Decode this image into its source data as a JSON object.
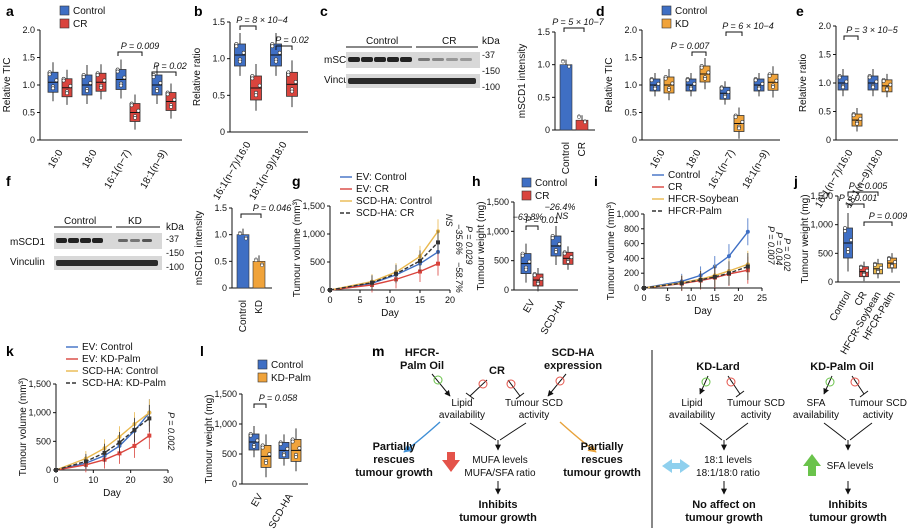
{
  "colors": {
    "control": "#3f6fc4",
    "cr": "#d9443d",
    "kd": "#f0a33a",
    "hfcr": "#e9b84e",
    "ink": "#111111",
    "orange": "#e8a23a",
    "blue": "#3f6fc4",
    "cyan": "#8fd0ee",
    "green": "#6ac34b",
    "red": "#e4534a"
  },
  "chart_data": [
    {
      "panel": "a",
      "type": "box",
      "ylabel": "Relative TIC",
      "ylim": [
        0,
        2
      ],
      "yticks": [
        "0",
        "0.5",
        "1.0",
        "1.5",
        "2.0"
      ],
      "categories": [
        "16:0",
        "18:0",
        "16:1(n−7)",
        "18:1(n−9)"
      ],
      "legend": [
        "Control",
        "CR"
      ],
      "series": [
        {
          "name": "Control",
          "values": [
            1.05,
            1.0,
            1.1,
            1.0
          ]
        },
        {
          "name": "CR",
          "values": [
            0.95,
            1.05,
            0.5,
            0.7
          ]
        }
      ],
      "annotations": [
        {
          "text": "P = 0.009"
        },
        {
          "text": "P = 0.02"
        }
      ]
    },
    {
      "panel": "b",
      "type": "box",
      "ylabel": "Relative ratio",
      "ylim": [
        0,
        1.5
      ],
      "yticks": [
        "0",
        "0.5",
        "1.0",
        "1.5"
      ],
      "categories": [
        "16:1(n−7)/16:0",
        "18:1(n−9)/18:0"
      ],
      "series": [
        {
          "name": "Control",
          "values": [
            1.05,
            1.05
          ]
        },
        {
          "name": "CR",
          "values": [
            0.6,
            0.65
          ]
        }
      ],
      "annotations": [
        {
          "text": "P = 8 × 10−4"
        },
        {
          "text": "P = 0.02"
        }
      ]
    },
    {
      "panel": "c",
      "type": "bar",
      "ylabel": "mSCD1 intensity",
      "ylim": [
        0,
        1.5
      ],
      "yticks": [
        "0",
        "0.5",
        "1.0",
        "1.5"
      ],
      "categories": [
        "Control",
        "CR"
      ],
      "values": [
        1.0,
        0.15
      ],
      "blot": {
        "groups": [
          "Control",
          "CR"
        ],
        "rows": [
          "mSCD1",
          "Vinculin"
        ],
        "unit": "kDa",
        "markers": [
          "-37",
          "-150",
          "-100"
        ]
      },
      "annotations": [
        {
          "text": "P = 5 × 10−7"
        }
      ]
    },
    {
      "panel": "d",
      "type": "box",
      "ylabel": "Relative TIC",
      "ylim": [
        0,
        2
      ],
      "yticks": [
        "0",
        "0.5",
        "1.0",
        "1.5",
        "2.0"
      ],
      "categories": [
        "16:0",
        "18:0",
        "16:1(n−7)",
        "18:1(n−9)"
      ],
      "legend": [
        "Control",
        "KD"
      ],
      "series": [
        {
          "name": "Control",
          "values": [
            1.0,
            1.0,
            0.85,
            1.0
          ]
        },
        {
          "name": "KD",
          "values": [
            1.0,
            1.2,
            0.3,
            1.05
          ]
        }
      ],
      "annotations": [
        {
          "text": "P = 0.007"
        },
        {
          "text": "P = 6 × 10−4"
        }
      ]
    },
    {
      "panel": "e",
      "type": "box",
      "ylabel": "Relative ratio",
      "ylim": [
        0,
        2
      ],
      "yticks": [
        "0",
        "0.5",
        "1.0",
        "1.5",
        "2.0"
      ],
      "categories": [
        "16:1(n−7)/16:0",
        "18:1(n−9)/18:0"
      ],
      "series": [
        {
          "name": "Control",
          "values": [
            1.0,
            1.0
          ]
        },
        {
          "name": "KD",
          "values": [
            0.35,
            0.95
          ]
        }
      ],
      "annotations": [
        {
          "text": "P = 3 × 10−5"
        }
      ]
    },
    {
      "panel": "f",
      "type": "bar",
      "ylabel": "mSCD1 intensity",
      "ylim": [
        0,
        1.5
      ],
      "yticks": [
        "0",
        "0.5",
        "1.0",
        "1.5"
      ],
      "categories": [
        "Control",
        "KD"
      ],
      "values": [
        1.0,
        0.5
      ],
      "blot": {
        "groups": [
          "Control",
          "KD"
        ],
        "rows": [
          "mSCD1",
          "Vinculin"
        ],
        "unit": "kDa",
        "markers": [
          "-37",
          "-150",
          "-100"
        ]
      },
      "annotations": [
        {
          "text": "P = 0.046"
        }
      ]
    },
    {
      "panel": "g",
      "type": "line",
      "xlabel": "Day",
      "ylabel": "Tumour volume (mm³)",
      "ylim": [
        0,
        1500
      ],
      "xlim": [
        0,
        20
      ],
      "yticks": [
        "0",
        "500",
        "1,000",
        "1,500"
      ],
      "xticks": [
        "0",
        "5",
        "10",
        "15",
        "20"
      ],
      "x": [
        0,
        7,
        11,
        15,
        18
      ],
      "series": [
        {
          "name": "EV: Control",
          "values": [
            0,
            120,
            270,
            470,
            680
          ]
        },
        {
          "name": "EV: CR",
          "values": [
            0,
            90,
            190,
            330,
            470
          ]
        },
        {
          "name": "SCD-HA: Control",
          "values": [
            0,
            150,
            320,
            600,
            1050
          ]
        },
        {
          "name": "SCD-HA: CR",
          "values": [
            0,
            130,
            290,
            520,
            850
          ]
        }
      ],
      "annotations": [
        {
          "text": "−35.6%"
        },
        {
          "text": "P = 0.029"
        },
        {
          "text": "−58.7%"
        },
        {
          "text": "NS"
        }
      ]
    },
    {
      "panel": "h",
      "type": "box",
      "ylabel": "Tumour weight (mg)",
      "ylim": [
        0,
        1500
      ],
      "yticks": [
        "0",
        "500",
        "1,000",
        "1,500"
      ],
      "categories": [
        "EV",
        "SCD-HA"
      ],
      "legend": [
        "Control",
        "CR"
      ],
      "series": [
        {
          "name": "Control",
          "values": [
            450,
            750
          ]
        },
        {
          "name": "CR",
          "values": [
            170,
            540
          ]
        }
      ],
      "annotations": [
        {
          "text": "−63.8%"
        },
        {
          "text": "P = 0.01"
        },
        {
          "text": "−26.4%"
        },
        {
          "text": "NS"
        }
      ]
    },
    {
      "panel": "i",
      "type": "line",
      "xlabel": "Day",
      "ylabel": "Tumour volume (mm³)",
      "ylim": [
        0,
        1000
      ],
      "xlim": [
        0,
        25
      ],
      "yticks": [
        "0",
        "200",
        "400",
        "600",
        "800",
        "1,000"
      ],
      "xticks": [
        "0",
        "5",
        "10",
        "15",
        "20",
        "25"
      ],
      "x": [
        0,
        8,
        12,
        15,
        18,
        22
      ],
      "series": [
        {
          "name": "Control",
          "values": [
            0,
            90,
            170,
            290,
            430,
            760
          ]
        },
        {
          "name": "CR",
          "values": [
            0,
            60,
            100,
            140,
            190,
            240
          ]
        },
        {
          "name": "HFCR-Soybean",
          "values": [
            0,
            70,
            120,
            170,
            230,
            320
          ]
        },
        {
          "name": "HFCR-Palm",
          "values": [
            0,
            65,
            110,
            150,
            200,
            290
          ]
        }
      ],
      "annotations": [
        {
          "text": "P = 0.007"
        },
        {
          "text": "P = 0.04"
        },
        {
          "text": "P = 0.02"
        }
      ]
    },
    {
      "panel": "j",
      "type": "box",
      "ylabel": "Tumour weight (mg)",
      "ylim": [
        0,
        1500
      ],
      "yticks": [
        "0",
        "500",
        "1,000",
        "1,500"
      ],
      "categories": [
        "Control",
        "CR",
        "HFCR-Soybean",
        "HFCR-Palm"
      ],
      "values": [
        680,
        180,
        230,
        330
      ],
      "annotations": [
        {
          "text": "P = 0.005"
        },
        {
          "text": "P = 0.001"
        },
        {
          "text": "P = 0.009"
        }
      ]
    },
    {
      "panel": "k",
      "type": "line",
      "xlabel": "Day",
      "ylabel": "Tumour volume (mm³)",
      "ylim": [
        0,
        1500
      ],
      "xlim": [
        0,
        30
      ],
      "yticks": [
        "0",
        "500",
        "1,000",
        "1,500"
      ],
      "xticks": [
        "0",
        "10",
        "20",
        "30"
      ],
      "x": [
        0,
        8,
        13,
        17,
        21,
        25
      ],
      "series": [
        {
          "name": "EV: Control",
          "values": [
            0,
            120,
            250,
            420,
            680,
            1000
          ]
        },
        {
          "name": "EV: KD-Palm",
          "values": [
            0,
            90,
            180,
            290,
            420,
            600
          ]
        },
        {
          "name": "SCD-HA: Control",
          "values": [
            0,
            200,
            380,
            580,
            800,
            1000
          ]
        },
        {
          "name": "SCD-HA: KD-Palm",
          "values": [
            0,
            150,
            300,
            480,
            700,
            900
          ]
        }
      ],
      "annotations": [
        {
          "text": "P = 0.002"
        }
      ]
    },
    {
      "panel": "l",
      "type": "box",
      "ylabel": "Tumour weight (mg)",
      "ylim": [
        0,
        1500
      ],
      "yticks": [
        "0",
        "500",
        "1,000",
        "1,500"
      ],
      "categories": [
        "EV",
        "SCD-HA"
      ],
      "legend": [
        "Control",
        "KD-Palm"
      ],
      "series": [
        {
          "name": "Control",
          "values": [
            700,
            560
          ]
        },
        {
          "name": "KD-Palm",
          "values": [
            460,
            560
          ]
        }
      ],
      "annotations": [
        {
          "text": "P = 0.058"
        }
      ]
    }
  ],
  "panel_labels": [
    "a",
    "b",
    "c",
    "d",
    "e",
    "f",
    "g",
    "h",
    "i",
    "j",
    "k",
    "l",
    "m"
  ],
  "diagram_m": {
    "hfcr": "HFCR-",
    "hfcr2": "Palm Oil",
    "cr": "CR",
    "scd": "SCD-HA",
    "scd2": "expression",
    "lipid": "Lipid",
    "lipid2": "availability",
    "tscd": "Tumour SCD",
    "tscd2": "activity",
    "partial": "Partially",
    "partial2": "rescues",
    "partial3": "tumour growth",
    "mufa": "MUFA levels",
    "mufa2": "MUFA/SFA ratio",
    "inhibits": "Inhibits",
    "inhibits2": "tumour growth",
    "kdlard": "KD-Lard",
    "kdpalm": "KD-Palm Oil",
    "sfa": "SFA",
    "sfa2": "availability",
    "r181": "18:1 levels",
    "r181b": "18:1/18:0 ratio",
    "noaff": "No affect on",
    "noaff2": "tumour growth",
    "sfalevels": "SFA levels"
  }
}
